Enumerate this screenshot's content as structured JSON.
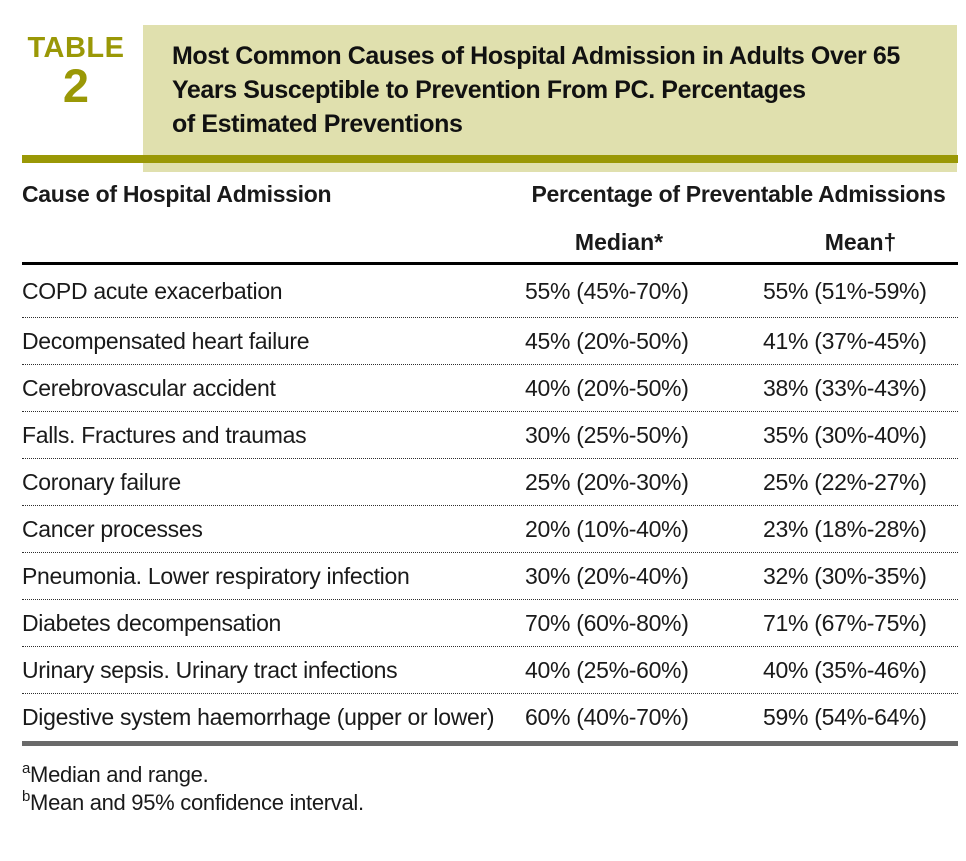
{
  "colors": {
    "olive": "#9a9806",
    "beige": "#e0e0ae",
    "text": "#1a1a1a",
    "rule_gray": "#6a6a6a"
  },
  "table_label": {
    "word": "TABLE",
    "number": "2"
  },
  "title_lines": [
    "Most Common Causes of Hospital Admission in Adults Over 65",
    "Years Susceptible to Prevention From PC. Percentages",
    "of Estimated Preventions"
  ],
  "columns": {
    "cause": "Cause of Hospital Admission",
    "group": "Percentage of Preventable Admissions",
    "median": "Median*",
    "mean": "Mean†"
  },
  "rows": [
    {
      "cause": "COPD acute exacerbation",
      "median": "55% (45%-70%)",
      "mean": "55% (51%-59%)"
    },
    {
      "cause": "Decompensated heart failure",
      "median": "45% (20%-50%)",
      "mean": "41% (37%-45%)"
    },
    {
      "cause": "Cerebrovascular accident",
      "median": "40% (20%-50%)",
      "mean": "38% (33%-43%)"
    },
    {
      "cause": "Falls. Fractures and traumas",
      "median": "30% (25%-50%)",
      "mean": "35% (30%-40%)"
    },
    {
      "cause": "Coronary failure",
      "median": "25% (20%-30%)",
      "mean": "25% (22%-27%)"
    },
    {
      "cause": "Cancer processes",
      "median": "20% (10%-40%)",
      "mean": "23% (18%-28%)"
    },
    {
      "cause": "Pneumonia. Lower respiratory infection",
      "median": "30% (20%-40%)",
      "mean": "32% (30%-35%)"
    },
    {
      "cause": "Diabetes decompensation",
      "median": "70% (60%-80%)",
      "mean": "71% (67%-75%)"
    },
    {
      "cause": "Urinary sepsis. Urinary tract infections",
      "median": "40% (25%-60%)",
      "mean": "40% (35%-46%)"
    },
    {
      "cause": "Digestive system haemorrhage (upper or lower)",
      "median": "60% (40%-70%)",
      "mean": "59% (54%-64%)"
    }
  ],
  "footnotes": [
    {
      "marker": "a",
      "text": "Median and range."
    },
    {
      "marker": "b",
      "text": "Mean and 95% confidence interval."
    }
  ]
}
